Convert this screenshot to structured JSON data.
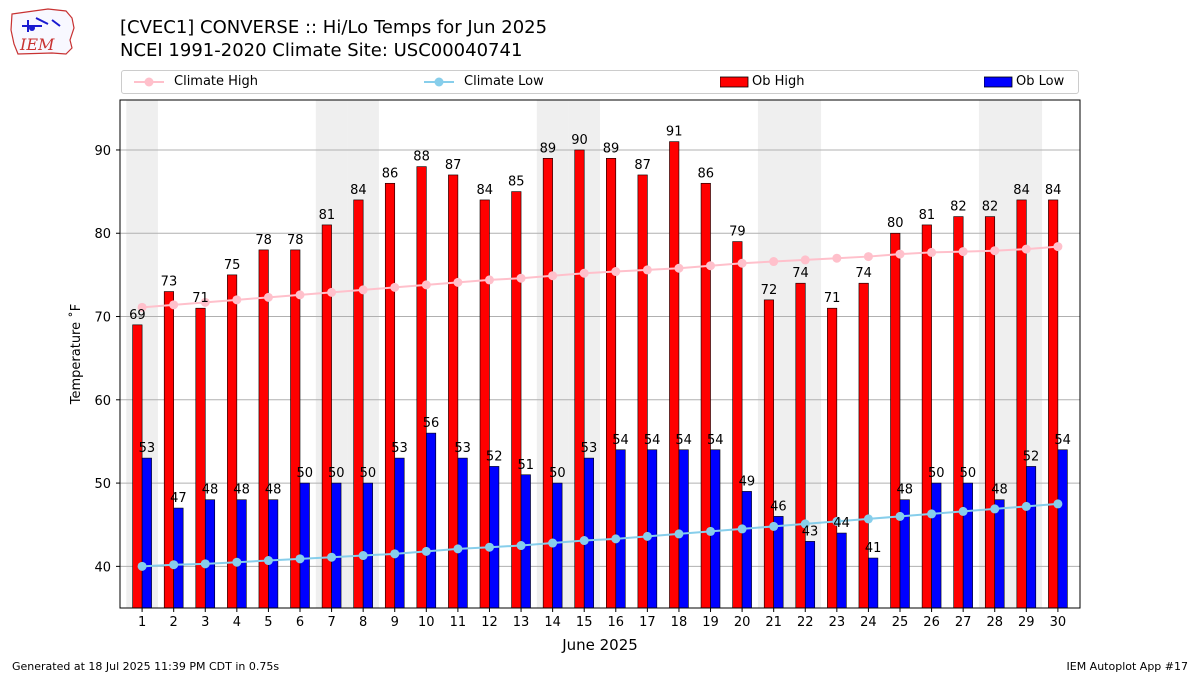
{
  "logo": {
    "text": "IEM"
  },
  "title": {
    "line1": "[CVEC1] CONVERSE :: Hi/Lo Temps for Jun 2025",
    "line2": "NCEI 1991-2020 Climate Site: USC00040741"
  },
  "legend": {
    "climate_high": "Climate High",
    "climate_low": "Climate Low",
    "ob_high": "Ob High",
    "ob_low": "Ob Low"
  },
  "colors": {
    "ob_high": "#ff0000",
    "ob_low": "#0000ff",
    "climate_high": "#ffc0cb",
    "climate_low": "#87ceeb",
    "weekend_shade": "#efefef",
    "grid": "#b0b0b0"
  },
  "footer": {
    "left": "Generated at 18 Jul 2025 11:39 PM CDT in 0.75s",
    "right": "IEM Autoplot App #17"
  },
  "chart_data": {
    "type": "bar",
    "xlabel": "June 2025",
    "ylabel": "Temperature ˚F",
    "ylim": [
      35,
      96
    ],
    "yticks": [
      40,
      50,
      60,
      70,
      80,
      90
    ],
    "grid": true,
    "legend_position": "top",
    "categories": [
      "1",
      "2",
      "3",
      "4",
      "5",
      "6",
      "7",
      "8",
      "9",
      "10",
      "11",
      "12",
      "13",
      "14",
      "15",
      "16",
      "17",
      "18",
      "19",
      "20",
      "21",
      "22",
      "23",
      "24",
      "25",
      "26",
      "27",
      "28",
      "29",
      "30"
    ],
    "shaded_days": [
      1,
      7,
      8,
      14,
      15,
      21,
      22,
      28,
      29
    ],
    "series": [
      {
        "name": "Ob High",
        "kind": "bar",
        "values": [
          69,
          73,
          71,
          75,
          78,
          78,
          81,
          84,
          86,
          88,
          87,
          84,
          85,
          89,
          90,
          89,
          87,
          91,
          86,
          79,
          72,
          74,
          71,
          74,
          80,
          81,
          82,
          82,
          84,
          84
        ]
      },
      {
        "name": "Ob Low",
        "kind": "bar",
        "values": [
          53,
          47,
          48,
          48,
          48,
          50,
          50,
          50,
          53,
          56,
          53,
          52,
          51,
          50,
          53,
          54,
          54,
          54,
          54,
          49,
          46,
          43,
          44,
          41,
          48,
          50,
          50,
          48,
          52,
          54
        ]
      },
      {
        "name": "Climate High",
        "kind": "line",
        "values": [
          71.1,
          71.4,
          71.7,
          72.0,
          72.3,
          72.6,
          72.9,
          73.2,
          73.5,
          73.8,
          74.1,
          74.4,
          74.6,
          74.9,
          75.2,
          75.4,
          75.6,
          75.8,
          76.1,
          76.4,
          76.6,
          76.8,
          77.0,
          77.2,
          77.5,
          77.7,
          77.8,
          77.9,
          78.1,
          78.4
        ]
      },
      {
        "name": "Climate Low",
        "kind": "line",
        "values": [
          40.0,
          40.2,
          40.3,
          40.5,
          40.7,
          40.9,
          41.1,
          41.3,
          41.5,
          41.8,
          42.1,
          42.3,
          42.5,
          42.8,
          43.1,
          43.3,
          43.6,
          43.9,
          44.2,
          44.5,
          44.8,
          45.1,
          45.4,
          45.7,
          46.0,
          46.3,
          46.6,
          46.9,
          47.2,
          47.5
        ]
      }
    ]
  }
}
